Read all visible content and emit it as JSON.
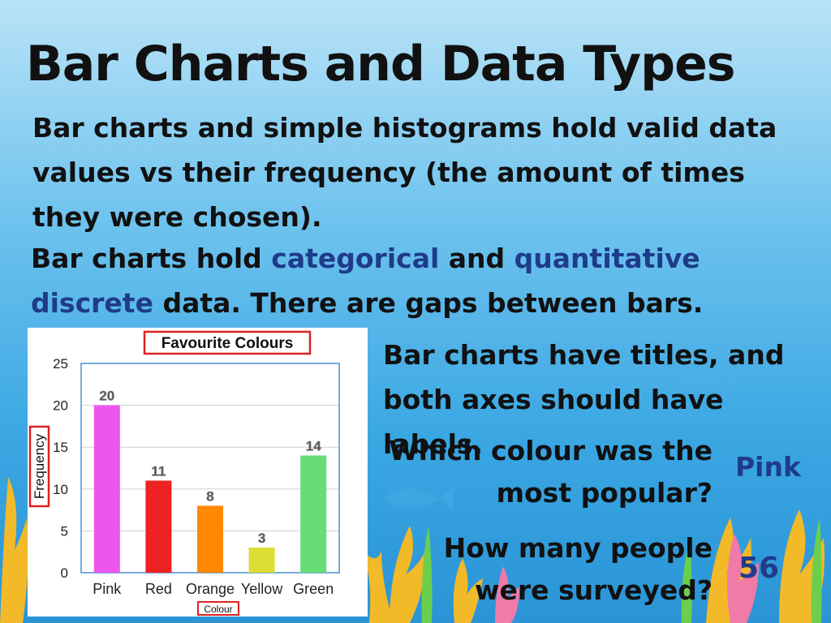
{
  "slide": {
    "title": "Bar Charts and Data Types",
    "para1": "Bar charts and simple histograms hold valid data values vs their frequency (the amount of times they were chosen).",
    "para2_a": "Bar charts hold ",
    "para2_cat": "categorical",
    "para2_b": " and ",
    "para2_quant": "quantitative discrete",
    "para2_c": " data. There are gaps between bars.",
    "titles_note": "Bar charts have titles, and both axes should have labels.",
    "q1": "Which colour was the most popular?",
    "a1": "Pink",
    "q2": "How many people were surveyed?",
    "a2": "56"
  },
  "chart_data": {
    "type": "bar",
    "title": "Favourite Colours",
    "xlabel": "Colour",
    "ylabel": "Frequency",
    "categories": [
      "Pink",
      "Red",
      "Orange",
      "Yellow",
      "Green"
    ],
    "values": [
      20,
      11,
      8,
      3,
      14
    ],
    "colors": [
      "#ee55ee",
      "#ee2222",
      "#ff8800",
      "#dddd33",
      "#66dd77"
    ],
    "ylim": [
      0,
      25
    ],
    "yticks": [
      0,
      5,
      10,
      15,
      20,
      25
    ],
    "grid": true,
    "highlight_color": "#dd2222"
  }
}
